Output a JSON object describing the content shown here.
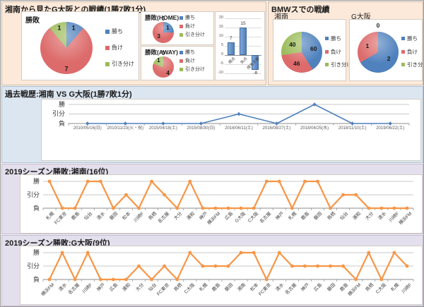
{
  "sections": {
    "head_to_head": {
      "title": "湘南から見たG大阪との戦績(1勝7敗1分)"
    },
    "bmw": {
      "title": "BMWスでの戦績"
    },
    "history": {
      "title": "過去戦歴:湘南 VS G大阪(1勝7敗1分)"
    },
    "shonan_season": {
      "title": "2019シーズン勝敗:湘南(16位)"
    },
    "gamba_season": {
      "title": "2019シーズン勝敗:G大阪(9位)"
    }
  },
  "legend": {
    "labels": [
      "勝ち",
      "負け",
      "引き分け"
    ],
    "colors": [
      "#4f81bd",
      "#dd6b6b",
      "#9bbb59"
    ]
  },
  "result_axis": [
    "勝",
    "引分",
    "負"
  ],
  "colors": {
    "line_blue": "#4f81bd",
    "line_orange": "#f79646",
    "bar_blue": "#4f81bd",
    "peach_bg": "#fde9d9",
    "blue_bg": "#dce6f1",
    "purple_bg": "#e4dfec"
  },
  "chart_data": [
    {
      "id": "overall_pie",
      "type": "pie",
      "title": "勝敗",
      "labels": [
        "勝ち",
        "負け",
        "引き分け"
      ],
      "values": [
        1,
        7,
        1
      ],
      "legend_position": "right"
    },
    {
      "id": "home_pie",
      "type": "pie",
      "title": "勝敗(HOME)",
      "labels": [
        "勝ち",
        "負け",
        "引き分け"
      ],
      "values": [
        1,
        3,
        0
      ],
      "legend_position": "right"
    },
    {
      "id": "away_pie",
      "type": "pie",
      "title": "勝敗(AWAY)",
      "labels": [
        "勝ち",
        "負け",
        "引き分け"
      ],
      "values": [
        0,
        4,
        1
      ],
      "legend_position": "right"
    },
    {
      "id": "goals_bar",
      "type": "bar",
      "title": "",
      "categories": [
        "得点",
        "失点",
        "得失点差"
      ],
      "values": [
        7,
        15,
        -8
      ],
      "ylim": [
        -10,
        20
      ],
      "yticks": [
        20,
        15,
        10,
        5,
        0,
        -5,
        -10
      ],
      "grid": true
    },
    {
      "id": "bmw_shonan_pie",
      "type": "pie",
      "title": "湘南",
      "labels": [
        "勝ち",
        "負け",
        "引き分け"
      ],
      "values": [
        60,
        46,
        40
      ],
      "legend_position": "right"
    },
    {
      "id": "bmw_gamba_pie",
      "type": "pie",
      "title": "G大阪",
      "labels": [
        "勝ち",
        "負け",
        "引き分け"
      ],
      "values": [
        2,
        1,
        0
      ],
      "legend_position": "right"
    },
    {
      "id": "history_line",
      "type": "line",
      "title": "過去戦歴",
      "ylabels": [
        "勝",
        "引分",
        "負"
      ],
      "categories": [
        "2010/05/16(日)",
        "2010/11/23(火・祝)",
        "2015/04/18(土)",
        "2015/08/30(日)",
        "2016/06/11(土)",
        "2016/08/27(土)",
        "2018/04/25(水)",
        "2018/11/10(土)",
        "2019/06/22(土)"
      ],
      "values": [
        "負",
        "負",
        "負",
        "負",
        "引分",
        "負",
        "勝",
        "負",
        "負"
      ]
    },
    {
      "id": "shonan_2019_line",
      "type": "line",
      "title": "2019シーズン勝敗:湘南",
      "ylabels": [
        "勝",
        "引分",
        "負"
      ],
      "categories": [
        "札幌",
        "FC東京",
        "鹿島",
        "仙台",
        "清水",
        "磐田",
        "松本",
        "川崎F",
        "鳥栖",
        "名古屋",
        "大分",
        "浦和",
        "神戸",
        "横浜FM",
        "広島",
        "G大阪",
        "C大阪",
        "名古屋",
        "神戸",
        "札幌",
        "鹿島",
        "磐田",
        "鳥栖",
        "仙台",
        "浦和",
        "大分",
        "清水",
        "川崎F",
        "横浜FM"
      ],
      "values": [
        "勝",
        "負",
        "負",
        "勝",
        "勝",
        "負",
        "引分",
        "負",
        "勝",
        "引分",
        "負",
        "勝",
        "負",
        "負",
        "負",
        "負",
        "負",
        "勝",
        "勝",
        "負",
        "勝",
        "勝",
        "負",
        "引分",
        "引分",
        "負",
        "負",
        "負",
        "負"
      ]
    },
    {
      "id": "gamba_2019_line",
      "type": "line",
      "title": "2019シーズン勝敗:G大阪",
      "ylabels": [
        "勝",
        "引分",
        "負"
      ],
      "categories": [
        "横浜FM",
        "清水",
        "名古屋",
        "川崎F",
        "神戸",
        "広島",
        "浦和",
        "大分",
        "仙台",
        "FC東京",
        "鳥栖",
        "C大阪",
        "札幌",
        "鹿島",
        "磐田",
        "湘南",
        "松本",
        "FC東京",
        "清水",
        "名古屋",
        "神戸",
        "広島",
        "磐田",
        "鹿島",
        "横浜FM",
        "鳥栖",
        "C大阪",
        "札幌",
        "川崎F"
      ],
      "values": [
        "負",
        "勝",
        "負",
        "勝",
        "負",
        "負",
        "負",
        "引分",
        "負",
        "引分",
        "負",
        "勝",
        "引分",
        "引分",
        "引分",
        "勝",
        "勝",
        "負",
        "勝",
        "引分",
        "引分",
        "引分",
        "引分",
        "引分",
        "負",
        "勝",
        "負",
        "勝",
        "引分"
      ]
    }
  ]
}
